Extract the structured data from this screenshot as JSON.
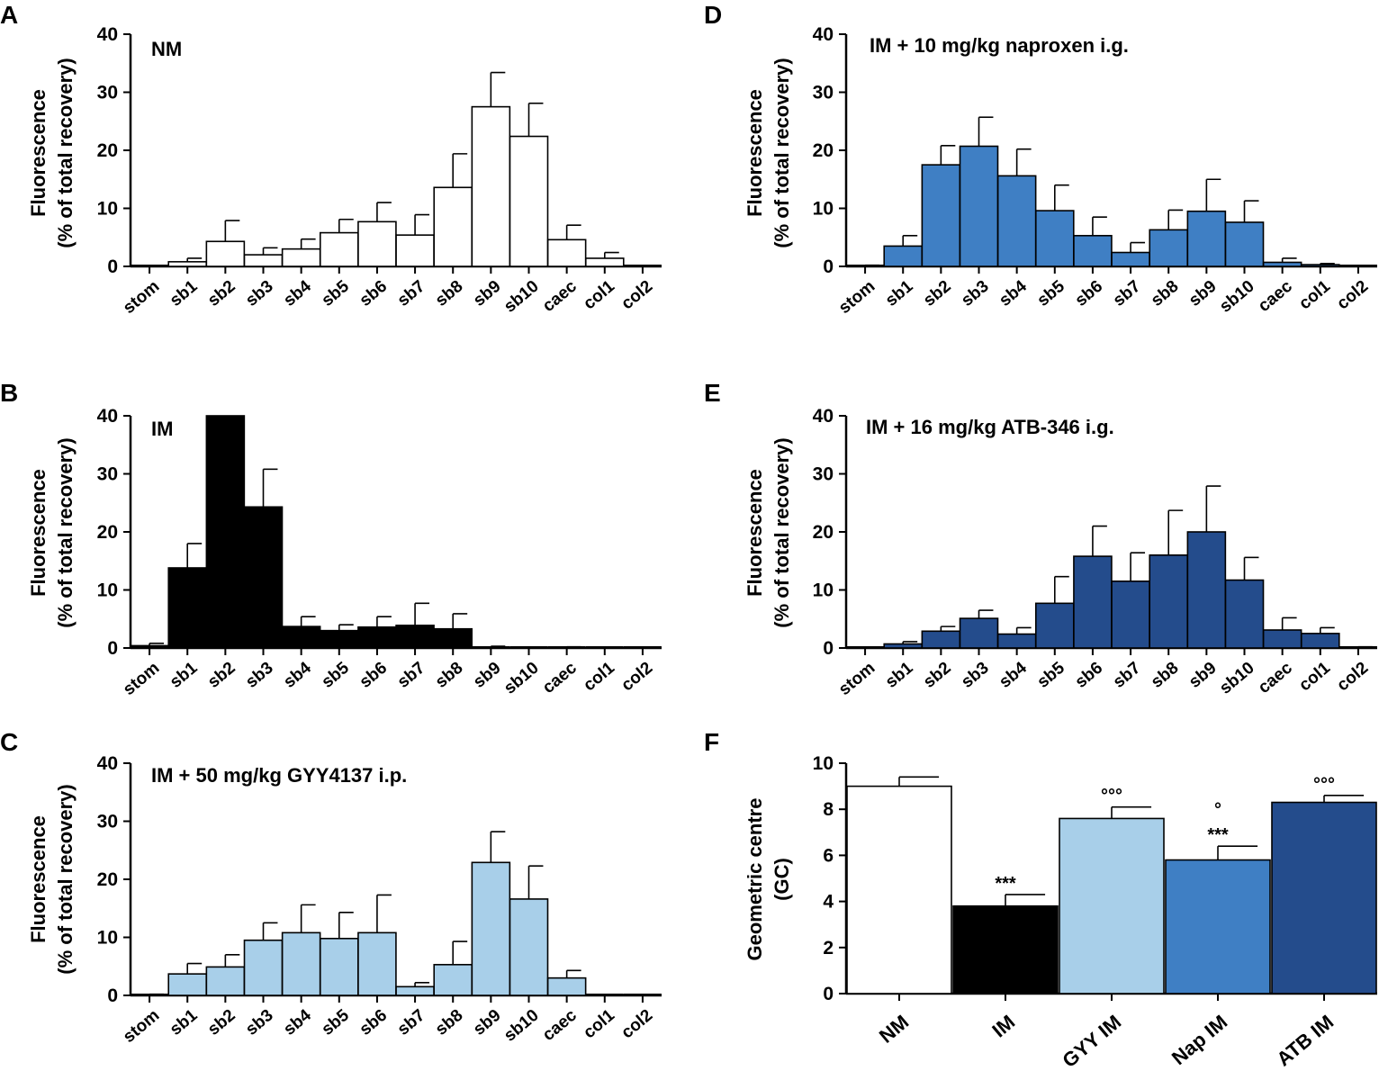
{
  "colors": {
    "NM": "#ffffff",
    "IM": "#000000",
    "GYY": "#a8cfe9",
    "Nap": "#3f7fc4",
    "ATB": "#244c8c"
  },
  "chart_data": [
    {
      "panel": "A",
      "type": "bar",
      "title": "NM",
      "ylabel": [
        "Fluorescence",
        "(% of total recovery)"
      ],
      "xlabel": "",
      "ylim": [
        0,
        40
      ],
      "yticks": [
        0,
        10,
        20,
        30,
        40
      ],
      "color_key": "NM",
      "categories": [
        "stom",
        "sb1",
        "sb2",
        "sb3",
        "sb4",
        "sb5",
        "sb6",
        "sb7",
        "sb8",
        "sb9",
        "sb10",
        "caec",
        "col1",
        "col2"
      ],
      "values": [
        0,
        0.8,
        4.3,
        2.0,
        3.0,
        5.8,
        7.7,
        5.4,
        13.6,
        27.5,
        22.4,
        4.6,
        1.4,
        0
      ],
      "errors": [
        0,
        0.6,
        3.6,
        1.2,
        1.7,
        2.3,
        3.3,
        3.5,
        5.8,
        5.9,
        5.7,
        2.5,
        1.0,
        0
      ]
    },
    {
      "panel": "B",
      "type": "bar",
      "title": "IM",
      "ylabel": [
        "Fluorescence",
        "(% of total recovery)"
      ],
      "xlabel": "",
      "ylim": [
        0,
        40
      ],
      "yticks": [
        0,
        10,
        20,
        30,
        40
      ],
      "color_key": "IM",
      "categories": [
        "stom",
        "sb1",
        "sb2",
        "sb3",
        "sb4",
        "sb5",
        "sb6",
        "sb7",
        "sb8",
        "sb9",
        "sb10",
        "caec",
        "col1",
        "col2"
      ],
      "values": [
        0.4,
        13.8,
        40.0,
        24.3,
        3.7,
        3.0,
        3.6,
        3.9,
        3.3,
        0,
        0,
        0,
        0,
        0
      ],
      "errors": [
        0.4,
        4.2,
        0,
        6.5,
        1.7,
        1.0,
        1.8,
        3.8,
        2.6,
        0.3,
        0,
        0.2,
        0,
        0
      ]
    },
    {
      "panel": "C",
      "type": "bar",
      "title": "IM + 50 mg/kg GYY4137 i.p.",
      "ylabel": [
        "Fluorescence",
        "(% of total recovery)"
      ],
      "xlabel": "",
      "ylim": [
        0,
        40
      ],
      "yticks": [
        0,
        10,
        20,
        30,
        40
      ],
      "color_key": "GYY",
      "categories": [
        "stom",
        "sb1",
        "sb2",
        "sb3",
        "sb4",
        "sb5",
        "sb6",
        "sb7",
        "sb8",
        "sb9",
        "sb10",
        "caec",
        "col1",
        "col2"
      ],
      "values": [
        0,
        3.7,
        4.9,
        9.5,
        10.8,
        9.8,
        10.8,
        1.5,
        5.3,
        22.9,
        16.6,
        3.0,
        0,
        0
      ],
      "errors": [
        0.2,
        1.8,
        2.1,
        3.0,
        4.8,
        4.5,
        6.5,
        0.7,
        4.0,
        5.3,
        5.7,
        1.3,
        0,
        0
      ]
    },
    {
      "panel": "D",
      "type": "bar",
      "title": "IM + 10 mg/kg naproxen i.g.",
      "ylabel": [
        "Fluorescence",
        "(% of total recovery)"
      ],
      "xlabel": "",
      "ylim": [
        0,
        40
      ],
      "yticks": [
        0,
        10,
        20,
        30,
        40
      ],
      "color_key": "Nap",
      "categories": [
        "stom",
        "sb1",
        "sb2",
        "sb3",
        "sb4",
        "sb5",
        "sb6",
        "sb7",
        "sb8",
        "sb9",
        "sb10",
        "caec",
        "col1",
        "col2"
      ],
      "values": [
        0,
        3.5,
        17.5,
        20.7,
        15.6,
        9.6,
        5.3,
        2.4,
        6.3,
        9.5,
        7.6,
        0.7,
        0.3,
        0
      ],
      "errors": [
        0.2,
        1.8,
        3.3,
        5.0,
        4.6,
        4.4,
        3.2,
        1.7,
        3.4,
        5.5,
        3.7,
        0.7,
        0.2,
        0
      ]
    },
    {
      "panel": "E",
      "type": "bar",
      "title": "IM + 16 mg/kg ATB-346 i.g.",
      "ylabel": [
        "Fluorescence",
        "(% of total recovery)"
      ],
      "xlabel": "",
      "ylim": [
        0,
        40
      ],
      "yticks": [
        0,
        10,
        20,
        30,
        40
      ],
      "color_key": "ATB",
      "categories": [
        "stom",
        "sb1",
        "sb2",
        "sb3",
        "sb4",
        "sb5",
        "sb6",
        "sb7",
        "sb8",
        "sb9",
        "sb10",
        "caec",
        "col1",
        "col2"
      ],
      "values": [
        0,
        0.7,
        2.9,
        5.1,
        2.4,
        7.7,
        15.8,
        11.5,
        16.0,
        20.0,
        11.7,
        3.1,
        2.5,
        0
      ],
      "errors": [
        0,
        0.4,
        0.8,
        1.4,
        1.1,
        4.6,
        5.2,
        4.9,
        7.7,
        7.9,
        3.9,
        2.1,
        1.0,
        0.2
      ]
    },
    {
      "panel": "F",
      "type": "bar",
      "title": "",
      "ylabel": [
        "Geometric centre",
        "(GC)"
      ],
      "xlabel": "",
      "ylim": [
        0,
        10
      ],
      "yticks": [
        0,
        2,
        4,
        6,
        8,
        10
      ],
      "categories": [
        "NM",
        "IM",
        "GYY IM",
        "Nap IM",
        "ATB IM"
      ],
      "color_keys": [
        "NM",
        "IM",
        "GYY",
        "Nap",
        "ATB"
      ],
      "values": [
        9.0,
        3.8,
        7.6,
        5.8,
        8.3
      ],
      "errors": [
        0.4,
        0.5,
        0.5,
        0.6,
        0.3
      ],
      "stars": [
        "",
        "***",
        "",
        "***",
        ""
      ],
      "circles": [
        "",
        "",
        "°°°",
        "°",
        "°°°"
      ]
    }
  ]
}
